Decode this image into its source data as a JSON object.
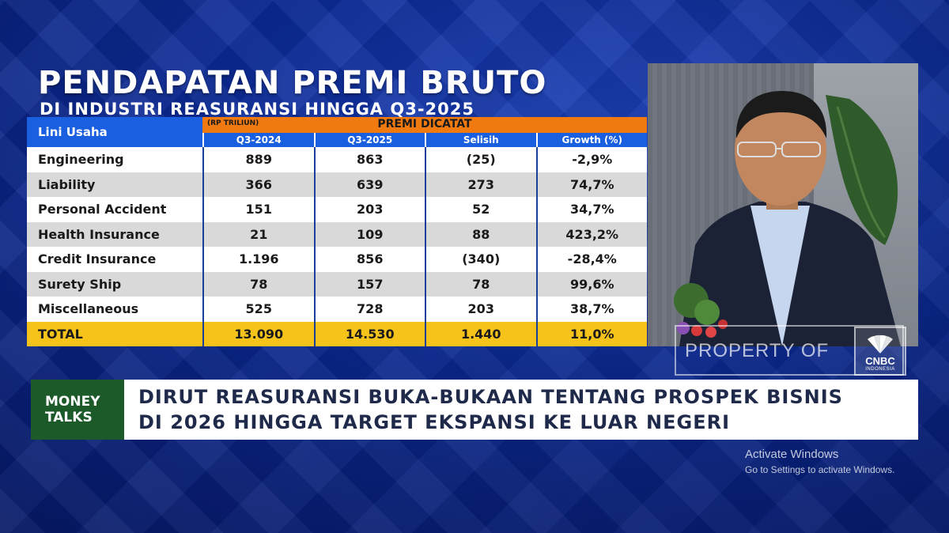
{
  "title": {
    "main": "PENDAPATAN PREMI BRUTO",
    "sub": "DI INDUSTRI REASURANSI HINGGA Q3-2025"
  },
  "table": {
    "left_header": "Lini Usaha",
    "unit": "(RP TRILIUN)",
    "group_header": "PREMI DICATAT",
    "columns": [
      "Q3-2024",
      "Q3-2025",
      "Selisih",
      "Growth (%)"
    ],
    "rows": [
      {
        "label": "Engineering",
        "values": [
          "889",
          "863",
          "(25)",
          "-2,9%"
        ]
      },
      {
        "label": "Liability",
        "values": [
          "366",
          "639",
          "273",
          "74,7%"
        ]
      },
      {
        "label": "Personal Accident",
        "values": [
          "151",
          "203",
          "52",
          "34,7%"
        ]
      },
      {
        "label": "Health Insurance",
        "values": [
          "21",
          "109",
          "88",
          "423,2%"
        ]
      },
      {
        "label": "Credit Insurance",
        "values": [
          "1.196",
          "856",
          "(340)",
          "-28,4%"
        ]
      },
      {
        "label": "Surety Ship",
        "values": [
          "78",
          "157",
          "78",
          "99,6%"
        ]
      },
      {
        "label": "Miscellaneous",
        "values": [
          "525",
          "728",
          "203",
          "38,7%"
        ]
      }
    ],
    "total": {
      "label": "TOTAL",
      "values": [
        "13.090",
        "14.530",
        "1.440",
        "11,0%"
      ]
    }
  },
  "watermark": {
    "text": "PROPERTY OF",
    "brand": "CNBC",
    "region": "INDONESIA"
  },
  "lower_third": {
    "badge_line1": "MONEY",
    "badge_line2": "TALKS",
    "headline_line1": "DIRUT REASURANSI BUKA-BUKAAN TENTANG PROSPEK BISNIS",
    "headline_line2": "DI 2026 HINGGA TARGET EKSPANSI KE LUAR NEGERI"
  },
  "os_overlay": {
    "line1": "Activate Windows",
    "line2": "Go to Settings to activate Windows."
  },
  "colors": {
    "header_blue": "#1a5fe0",
    "header_orange": "#f07a10",
    "total_yellow": "#f6c31a",
    "badge_green": "#1d5a2a"
  }
}
